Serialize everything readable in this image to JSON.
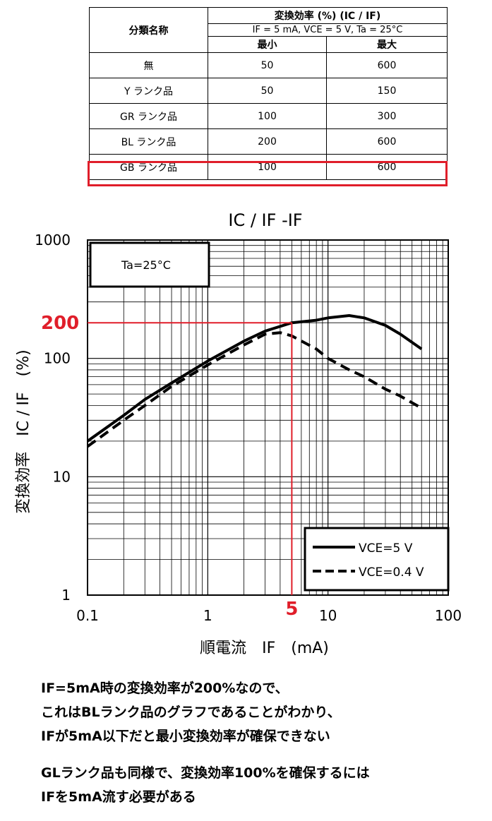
{
  "table": {
    "col_category": "分類名称",
    "col_ratio": "変換効率 (%) (IC / IF)",
    "col_condition": "IF = 5 mA, VCE = 5 V, Ta = 25°C",
    "col_min": "最小",
    "col_max": "最大",
    "rows": [
      {
        "name": "無",
        "min": "50",
        "max": "600"
      },
      {
        "name": "Y ランク品",
        "min": "50",
        "max": "150"
      },
      {
        "name": "GR ランク品",
        "min": "100",
        "max": "300"
      },
      {
        "name": "BL ランク品",
        "min": "200",
        "max": "600"
      },
      {
        "name": "GB ランク品",
        "min": "100",
        "max": "600"
      }
    ],
    "highlight_color": "#e01e2a"
  },
  "chart_data": {
    "type": "line",
    "title": "IC / IF  -IF",
    "xlabel": "順電流　IF　(mA)",
    "ylabel": "変換効率　IC / IF　(%)",
    "x_scale": "log",
    "y_scale": "log",
    "xlim": [
      0.1,
      100
    ],
    "ylim": [
      1,
      1000
    ],
    "x_ticks": [
      "0.1",
      "1",
      "10",
      "100"
    ],
    "y_ticks": [
      "1",
      "10",
      "100",
      "1000"
    ],
    "grid": true,
    "annotation_box": "Ta=25°C",
    "legend_position": "bottom-right",
    "series": [
      {
        "name": "VCE=5  V",
        "style": "solid",
        "x": [
          0.1,
          0.2,
          0.3,
          0.5,
          1,
          2,
          3,
          5,
          8,
          10,
          15,
          20,
          30,
          40,
          60
        ],
        "y": [
          20,
          33,
          45,
          62,
          95,
          140,
          170,
          200,
          210,
          220,
          230,
          220,
          190,
          160,
          120
        ]
      },
      {
        "name": "VCE=0.4 V",
        "style": "dashed",
        "x": [
          0.1,
          0.2,
          0.3,
          0.5,
          1,
          2,
          3,
          4,
          5,
          8,
          10,
          15,
          20,
          30,
          40,
          60
        ],
        "y": [
          18,
          30,
          40,
          58,
          88,
          130,
          160,
          165,
          155,
          120,
          100,
          80,
          70,
          55,
          48,
          38
        ]
      }
    ],
    "highlight_x_label": "5",
    "highlight_y_label": "200",
    "highlight_color": "#e01e2a"
  },
  "notes": {
    "line1": "IF=5mA時の変換効率が200%なので、",
    "line2": "これはBLランク品のグラフであることがわかり、",
    "line3": "IFが5mA以下だと最小変換効率が確保できない",
    "line4": "GLランク品も同様で、変換効率100%を確保するには",
    "line5": "IFを5mA流す必要がある"
  }
}
